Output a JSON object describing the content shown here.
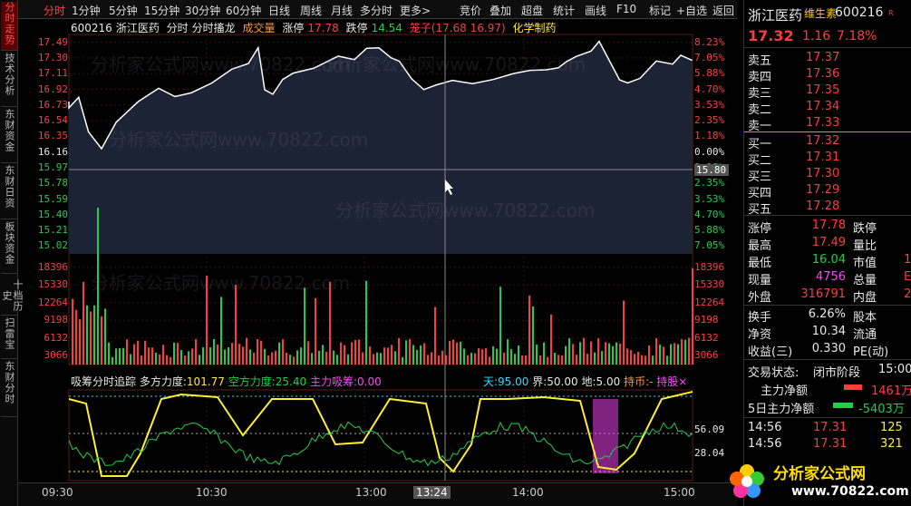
{
  "sidebar": {
    "tabs": [
      "分时走势",
      "技术分析",
      "东财资金",
      "东财日资",
      "板块资金",
      "十档历史",
      "扫雷宝",
      "东财分时"
    ]
  },
  "toolbar": {
    "items": [
      "分时",
      "1分钟",
      "5分钟",
      "15分钟",
      "30分钟",
      "60分钟",
      "日线",
      "周线",
      "月线",
      "多分时",
      "更多"
    ],
    "more_arrow": ">",
    "right": [
      "竞价",
      "叠加",
      "超盘",
      "统计",
      "画线",
      "F10",
      "标记",
      "+自选",
      "返回"
    ]
  },
  "infobar": {
    "code": "600216",
    "name": "浙江医药",
    "mode": "分时",
    "mode2": "分时搐龙",
    "vol_label": "成交量",
    "limit_up_label": "涨停",
    "limit_up": "17.78",
    "limit_down_label": "跌停",
    "limit_down": "14.54",
    "cage": "笼子(17.68 16.97)",
    "sector": "化学制药"
  },
  "price_axis": {
    "left": [
      "17.49",
      "17.30",
      "17.11",
      "16.92",
      "16.73",
      "16.54",
      "16.35",
      "16.16",
      "15.97",
      "15.78",
      "15.59",
      "15.40",
      "15.21",
      "15.02"
    ],
    "right": [
      "8.23%",
      "7.05%",
      "5.88%",
      "4.70%",
      "3.53%",
      "2.35%",
      "1.18%",
      "0.00%",
      "1.18%",
      "2.35%",
      "3.53%",
      "4.70%",
      "5.88%",
      "7.05%"
    ],
    "cursor_price": "15.80"
  },
  "volume_axis": {
    "labels": [
      "18396",
      "15330",
      "12264",
      "9198",
      "6132",
      "3066"
    ]
  },
  "indicator": {
    "title": "吸筹分时追踪",
    "dfl_label": "多方力度:",
    "dfl": "101.77",
    "kfl_label": "空方力度:",
    "kfl": "25.40",
    "zl_label": "主力吸筹:",
    "zl": "0.00",
    "tian_label": "天:",
    "tian": "95.00",
    "jie_label": "界:",
    "jie": "50.00",
    "di_label": "地:",
    "di": "5.00",
    "chibi_label": "持币:",
    "chibi": "-",
    "extra": "持股",
    "close": "×",
    "axis": [
      "56.09",
      "28.04"
    ]
  },
  "watermark": "分析家公式网www.70822.com",
  "time_axis": {
    "labels": [
      "09:30",
      "10:30",
      "13:00",
      "14:00",
      "15:00"
    ],
    "cursor": "13:24"
  },
  "quote": {
    "name": "浙江医药",
    "badge": "维生素",
    "code": "600216",
    "tag": "R",
    "price": "17.32",
    "change": "1.16",
    "pct": "7.18%",
    "asks": [
      {
        "label": "卖五",
        "price": "17.37"
      },
      {
        "label": "卖四",
        "price": "17.36"
      },
      {
        "label": "卖三",
        "price": "17.35"
      },
      {
        "label": "卖二",
        "price": "17.34"
      },
      {
        "label": "卖一",
        "price": "17.33"
      }
    ],
    "bids": [
      {
        "label": "买一",
        "price": "17.32"
      },
      {
        "label": "买二",
        "price": "17.31"
      },
      {
        "label": "买三",
        "price": "17.30"
      },
      {
        "label": "买四",
        "price": "17.29"
      },
      {
        "label": "买五",
        "price": "17.28"
      }
    ],
    "stats": [
      {
        "l": "涨停",
        "v": "17.78",
        "r": "跌停",
        "rv": ""
      },
      {
        "l": "最高",
        "v": "17.49",
        "r": "量比",
        "rv": ""
      },
      {
        "l": "最低",
        "v": "16.04",
        "r": "市值",
        "rv": "1"
      },
      {
        "l": "现量",
        "v": "4756",
        "r": "总量",
        "rv": "E"
      },
      {
        "l": "外盘",
        "v": "316791",
        "r": "内盘",
        "rv": "2"
      }
    ],
    "stats2": [
      {
        "l": "换手",
        "v": "6.26%",
        "r": "股本"
      },
      {
        "l": "净资",
        "v": "10.34",
        "r": "流通"
      },
      {
        "l": "收益(三)",
        "v": "0.330",
        "r": "PE(动)"
      }
    ],
    "trade_state_label": "交易状态:",
    "trade_state": "闭市阶段",
    "trade_time": "15:00",
    "main_net_label": "主力净额",
    "main_net": "1461万",
    "main5_label": "5日主力净额",
    "main5": "-5403万",
    "ticks": [
      {
        "t": "14:56",
        "p": "17.31",
        "v": "125"
      },
      {
        "t": "14:56",
        "p": "17.31",
        "v": "321"
      }
    ]
  },
  "logo": {
    "text": "分析家公式网",
    "url": "www.70822.com"
  },
  "colors": {
    "up": "#ff3c3c",
    "down": "#1fcf4a",
    "line": "#ffffff",
    "signal": "#ffee33",
    "green_line": "#1fcf4a",
    "magenta": "#ff44ff"
  }
}
